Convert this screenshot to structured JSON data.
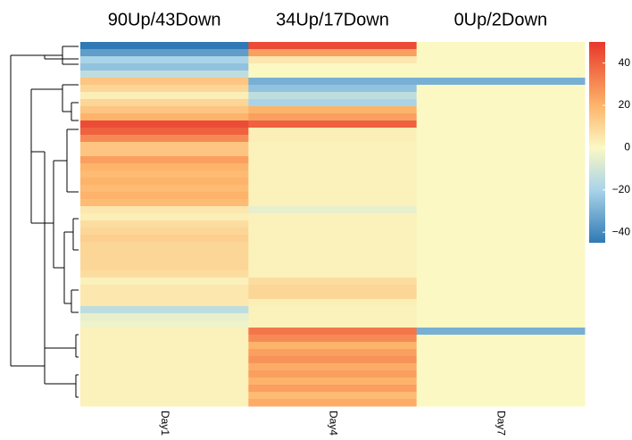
{
  "chart_data": {
    "type": "heatmap",
    "column_titles": [
      "90Up/43Down",
      "34Up/17Down",
      "0Up/2Down"
    ],
    "columns": [
      "Day1",
      "Day4",
      "Day7"
    ],
    "values": [
      [
        -45,
        45,
        0
      ],
      [
        -35,
        25,
        0
      ],
      [
        -20,
        5,
        0
      ],
      [
        -25,
        0,
        0
      ],
      [
        -15,
        0,
        0
      ],
      [
        15,
        -30,
        -30
      ],
      [
        10,
        -25,
        0
      ],
      [
        3,
        -15,
        0
      ],
      [
        10,
        -20,
        0
      ],
      [
        15,
        20,
        0
      ],
      [
        20,
        25,
        0
      ],
      [
        45,
        40,
        0
      ],
      [
        40,
        3,
        0
      ],
      [
        30,
        3,
        0
      ],
      [
        15,
        2,
        0
      ],
      [
        15,
        2,
        0
      ],
      [
        25,
        2,
        0
      ],
      [
        20,
        2,
        0
      ],
      [
        18,
        2,
        0
      ],
      [
        20,
        2,
        0
      ],
      [
        18,
        2,
        0
      ],
      [
        20,
        2,
        0
      ],
      [
        18,
        2,
        0
      ],
      [
        5,
        -5,
        0
      ],
      [
        3,
        2,
        0
      ],
      [
        8,
        2,
        0
      ],
      [
        10,
        2,
        0
      ],
      [
        12,
        2,
        0
      ],
      [
        10,
        2,
        0
      ],
      [
        10,
        2,
        0
      ],
      [
        10,
        2,
        0
      ],
      [
        10,
        2,
        0
      ],
      [
        8,
        2,
        0
      ],
      [
        2,
        8,
        0
      ],
      [
        5,
        10,
        0
      ],
      [
        5,
        10,
        0
      ],
      [
        5,
        3,
        0
      ],
      [
        -15,
        2,
        0
      ],
      [
        -5,
        2,
        0
      ],
      [
        -3,
        2,
        0
      ],
      [
        2,
        35,
        -30
      ],
      [
        2,
        30,
        0
      ],
      [
        2,
        20,
        0
      ],
      [
        2,
        25,
        0
      ],
      [
        2,
        28,
        0
      ],
      [
        2,
        22,
        0
      ],
      [
        2,
        25,
        0
      ],
      [
        2,
        20,
        0
      ],
      [
        2,
        25,
        0
      ],
      [
        2,
        18,
        0
      ],
      [
        2,
        22,
        0
      ]
    ],
    "clim": [
      -45,
      50
    ],
    "colorscale": [
      {
        "value": -45,
        "color": "#2f79b5"
      },
      {
        "value": -20,
        "color": "#a9d4e8"
      },
      {
        "value": 0,
        "color": "#fbf8c4"
      },
      {
        "value": 20,
        "color": "#fdb46a"
      },
      {
        "value": 50,
        "color": "#e8372a"
      }
    ],
    "cticks": [
      {
        "value": -40,
        "label": "−40"
      },
      {
        "value": -20,
        "label": "−20"
      },
      0,
      20,
      40
    ]
  }
}
